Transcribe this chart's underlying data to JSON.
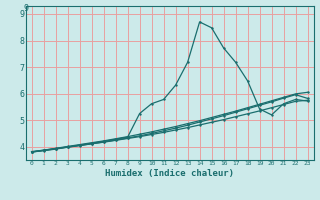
{
  "xlabel": "Humidex (Indice chaleur)",
  "bg_color": "#cceaea",
  "grid_color": "#e8a0a0",
  "line_color": "#1a6e6e",
  "xlim": [
    -0.5,
    23.5
  ],
  "ylim": [
    3.5,
    9.3
  ],
  "xticks": [
    0,
    1,
    2,
    3,
    4,
    5,
    6,
    7,
    8,
    9,
    10,
    11,
    12,
    13,
    14,
    15,
    16,
    17,
    18,
    19,
    20,
    21,
    22,
    23
  ],
  "yticks": [
    4,
    5,
    6,
    7,
    8,
    9
  ],
  "line1_x": [
    0,
    1,
    2,
    3,
    4,
    5,
    6,
    7,
    8,
    9,
    10,
    11,
    12,
    13,
    14,
    15,
    16,
    17,
    18,
    19,
    20,
    21,
    22,
    23
  ],
  "line1_y": [
    3.8,
    3.87,
    3.94,
    4.01,
    4.08,
    4.15,
    4.22,
    4.3,
    4.38,
    4.47,
    4.56,
    4.66,
    4.76,
    4.87,
    4.98,
    5.1,
    5.22,
    5.34,
    5.47,
    5.6,
    5.73,
    5.86,
    5.99,
    6.05
  ],
  "line2_x": [
    0,
    1,
    2,
    3,
    4,
    5,
    6,
    7,
    8,
    9,
    10,
    11,
    12,
    13,
    14,
    15,
    16,
    17,
    18,
    19,
    20,
    21,
    22,
    23
  ],
  "line2_y": [
    3.82,
    3.87,
    3.93,
    3.99,
    4.05,
    4.11,
    4.17,
    4.24,
    4.31,
    4.38,
    4.46,
    4.54,
    4.63,
    4.72,
    4.82,
    4.92,
    5.02,
    5.13,
    5.24,
    5.35,
    5.47,
    5.59,
    5.71,
    5.75
  ],
  "line3_x": [
    0,
    1,
    2,
    3,
    4,
    5,
    6,
    7,
    8,
    9,
    10,
    11,
    12,
    13,
    14,
    15,
    16,
    17,
    18,
    19,
    20,
    21,
    22,
    23
  ],
  "line3_y": [
    3.8,
    3.86,
    3.92,
    3.99,
    4.06,
    4.13,
    4.2,
    4.28,
    4.36,
    5.25,
    5.62,
    5.78,
    6.32,
    7.18,
    8.7,
    8.48,
    7.72,
    7.18,
    6.48,
    5.42,
    5.2,
    5.62,
    5.78,
    5.72
  ],
  "line4_x": [
    0,
    1,
    2,
    3,
    4,
    5,
    6,
    7,
    8,
    9,
    10,
    11,
    12,
    13,
    14,
    15,
    16,
    17,
    18,
    19,
    20,
    21,
    22,
    23
  ],
  "line4_y": [
    3.8,
    3.85,
    3.91,
    3.98,
    4.04,
    4.11,
    4.18,
    4.25,
    4.33,
    4.41,
    4.5,
    4.6,
    4.7,
    4.81,
    4.93,
    5.05,
    5.17,
    5.3,
    5.43,
    5.56,
    5.69,
    5.83,
    5.96,
    5.82
  ]
}
